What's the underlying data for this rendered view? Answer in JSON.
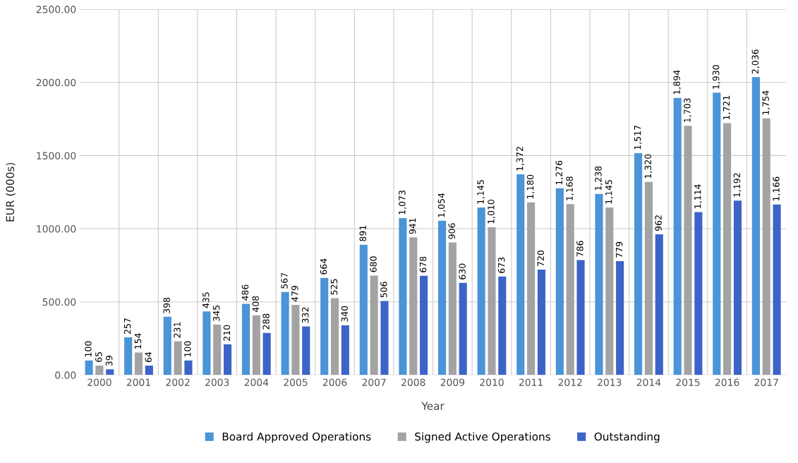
{
  "chart_data": {
    "type": "bar",
    "xlabel": "Year",
    "ylabel": "EUR (000s)",
    "categories": [
      "2000",
      "2001",
      "2002",
      "2003",
      "2004",
      "2005",
      "2006",
      "2007",
      "2008",
      "2009",
      "2010",
      "2011",
      "2012",
      "2013",
      "2014",
      "2015",
      "2016",
      "2017"
    ],
    "series": [
      {
        "name": "Board Approved Operations",
        "color": "#4a94d8",
        "values": [
          100,
          257,
          398,
          435,
          486,
          567,
          664,
          891,
          1073,
          1054,
          1145,
          1372,
          1276,
          1238,
          1517,
          1894,
          1930,
          2036
        ],
        "value_labels": [
          "100",
          "257",
          "398",
          "435",
          "486",
          "567",
          "664",
          "891",
          "1,073",
          "1,054",
          "1,145",
          "1,372",
          "1,276",
          "1,238",
          "1,517",
          "1,894",
          "1,930",
          "2,036"
        ]
      },
      {
        "name": "Signed Active Operations",
        "color": "#a3a3a3",
        "values": [
          65,
          154,
          231,
          345,
          408,
          479,
          525,
          680,
          941,
          906,
          1010,
          1180,
          1168,
          1145,
          1320,
          1703,
          1721,
          1754
        ],
        "value_labels": [
          "65",
          "154",
          "231",
          "345",
          "408",
          "479",
          "525",
          "680",
          "941",
          "906",
          "1,010",
          "1,180",
          "1,168",
          "1,145",
          "1,320",
          "1,703",
          "1,721",
          "1,754"
        ]
      },
      {
        "name": "Outstanding",
        "color": "#3c64c8",
        "values": [
          39,
          64,
          100,
          210,
          288,
          332,
          340,
          506,
          678,
          630,
          673,
          720,
          786,
          779,
          962,
          1114,
          1192,
          1166
        ],
        "value_labels": [
          "39",
          "64",
          "100",
          "210",
          "288",
          "332",
          "340",
          "506",
          "678",
          "630",
          "673",
          "720",
          "786",
          "779",
          "962",
          "1,114",
          "1,192",
          "1,166"
        ]
      }
    ],
    "ylim": [
      0,
      2500
    ],
    "yticks": [
      {
        "value": 0,
        "label": "0.00"
      },
      {
        "value": 500,
        "label": "500.00"
      },
      {
        "value": 1000,
        "label": "1000.00"
      },
      {
        "value": 1500,
        "label": "1500.00"
      },
      {
        "value": 2000,
        "label": "2000.00"
      },
      {
        "value": 2500,
        "label": "2500.00"
      }
    ],
    "grid": true,
    "legend": "bottom"
  }
}
